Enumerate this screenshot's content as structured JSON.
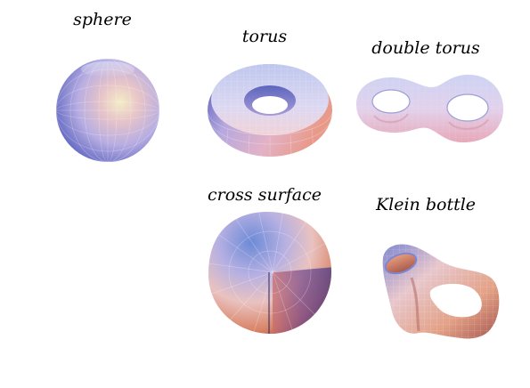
{
  "surfaces": [
    {
      "key": "sphere",
      "label": "sphere"
    },
    {
      "key": "torus",
      "label": "torus"
    },
    {
      "key": "double_torus",
      "label": "double torus"
    },
    {
      "key": "cross_surface",
      "label": "cross surface"
    },
    {
      "key": "klein_bottle",
      "label": "Klein bottle"
    }
  ],
  "colors": {
    "blue": "#5d6ec8",
    "lavender": "#b7b2e6",
    "pink": "#e0b4c9",
    "salmon": "#e89a7c",
    "cream": "#f2e2b0",
    "dark": "#3b2f70",
    "red_brown": "#8f3b3a"
  }
}
